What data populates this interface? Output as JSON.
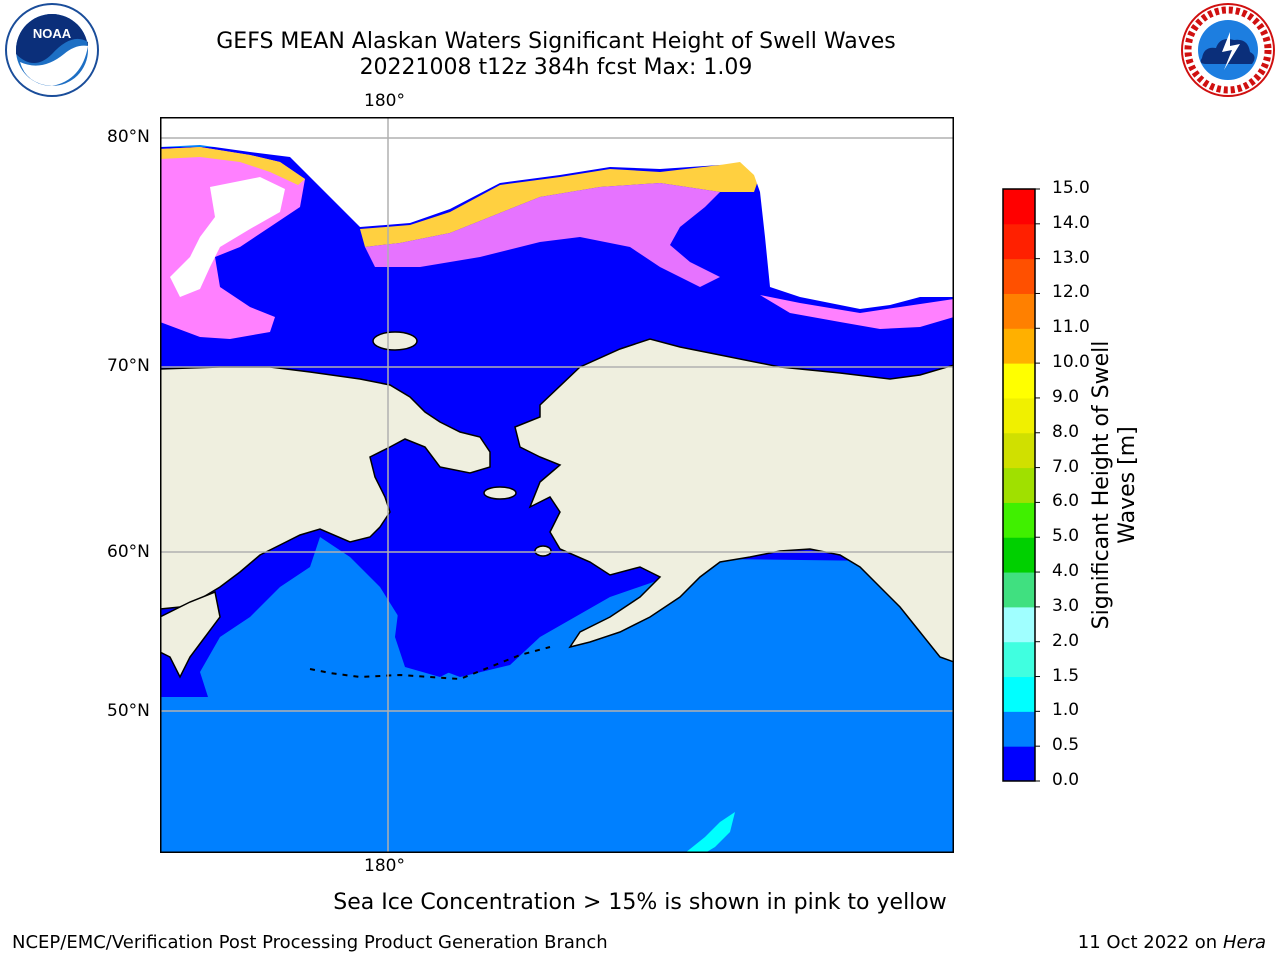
{
  "title": {
    "line1": "GEFS MEAN Alaskan Waters Significant Height of Swell Waves",
    "line2": "20221008 t12z 384h fcst   Max: 1.09"
  },
  "logos": {
    "left": "noaa-logo",
    "right": "national-weather-service-logo"
  },
  "map": {
    "lon_label_top": "180°",
    "lon_label_bottom": "180°",
    "lat_labels": [
      "80°N",
      "70°N",
      "60°N",
      "50°N"
    ],
    "colors": {
      "land": "#efefdf",
      "coast": "#000000",
      "grid": "#b0b0b0",
      "swell_low": "#0000ff",
      "swell_mid": "#0080ff",
      "swell_cyan": "#00ffff",
      "ice_pink": "#ff80ff",
      "ice_magenta": "#ff40ff",
      "ice_yellow": "#ffd040"
    }
  },
  "colorbar": {
    "label_line1": "Significant Height of Swell",
    "label_line2": "Waves [m]",
    "ticks": [
      "0.0",
      "0.5",
      "1.0",
      "1.5",
      "2.0",
      "3.0",
      "4.0",
      "5.0",
      "6.0",
      "7.0",
      "8.0",
      "9.0",
      "10.0",
      "11.0",
      "12.0",
      "13.0",
      "14.0",
      "15.0"
    ],
    "colors": [
      "#0000ff",
      "#0080ff",
      "#00ffff",
      "#40ffe0",
      "#a0ffff",
      "#40e080",
      "#00d000",
      "#40f000",
      "#a0e000",
      "#d0e000",
      "#f0f000",
      "#ffff00",
      "#ffb000",
      "#ff8000",
      "#ff5000",
      "#ff2000",
      "#ff0000"
    ]
  },
  "footer": {
    "note": "Sea Ice Concentration > 15% is shown in pink to yellow",
    "credit": "NCEP/EMC/Verification Post Processing Product Generation Branch",
    "date": "11 Oct 2022 on",
    "machine": "Hera"
  }
}
